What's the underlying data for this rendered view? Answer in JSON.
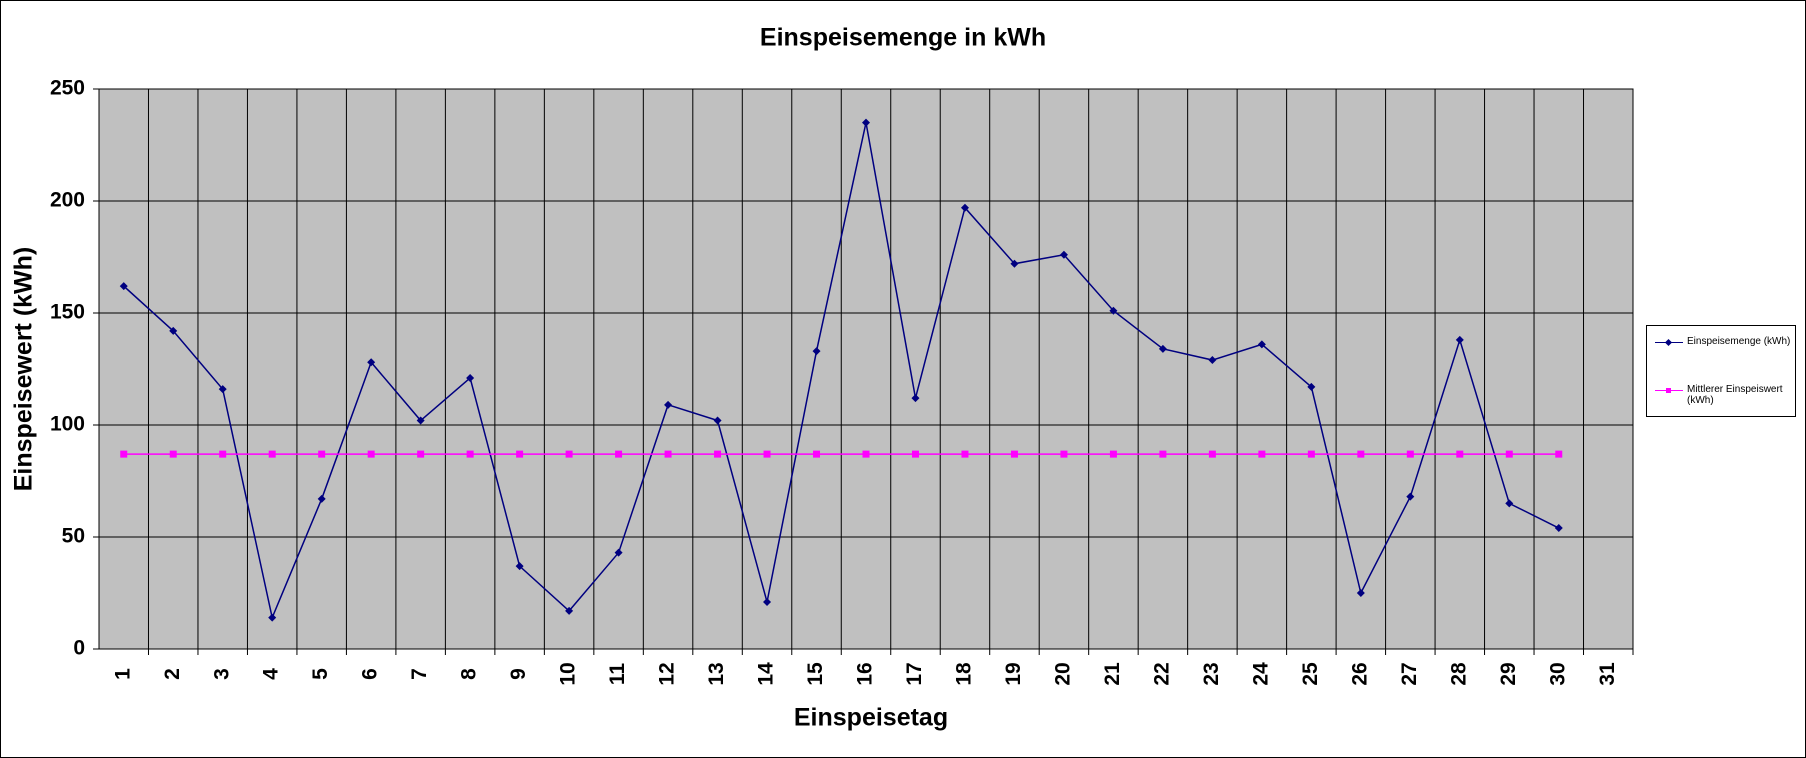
{
  "chart_data": {
    "type": "line",
    "title": "Einspeisemenge in kWh",
    "x_label": "Einspeisetag",
    "y_label": "Einspeisewert  (kWh)",
    "categories": [
      "1",
      "2",
      "3",
      "4",
      "5",
      "6",
      "7",
      "8",
      "9",
      "10",
      "11",
      "12",
      "13",
      "14",
      "15",
      "16",
      "17",
      "18",
      "19",
      "20",
      "21",
      "22",
      "23",
      "24",
      "25",
      "26",
      "27",
      "28",
      "29",
      "30",
      "31"
    ],
    "series": [
      {
        "name": "Einspeisemenge (kWh)",
        "color": "#000080",
        "marker": "diamond",
        "values": [
          162,
          142,
          116,
          14,
          67,
          128,
          102,
          121,
          37,
          17,
          43,
          109,
          102,
          21,
          133,
          235,
          112,
          197,
          172,
          176,
          151,
          134,
          129,
          136,
          117,
          25,
          68,
          138,
          65,
          54,
          null
        ]
      },
      {
        "name": "Mittlerer Einspeiswert (kWh)",
        "color": "#ff00ff",
        "marker": "square",
        "values": [
          87,
          87,
          87,
          87,
          87,
          87,
          87,
          87,
          87,
          87,
          87,
          87,
          87,
          87,
          87,
          87,
          87,
          87,
          87,
          87,
          87,
          87,
          87,
          87,
          87,
          87,
          87,
          87,
          87,
          87,
          null
        ]
      }
    ],
    "ylim": [
      0,
      250
    ],
    "yticks": [
      0,
      50,
      100,
      150,
      200,
      250
    ],
    "grid": true,
    "legend": "right"
  }
}
